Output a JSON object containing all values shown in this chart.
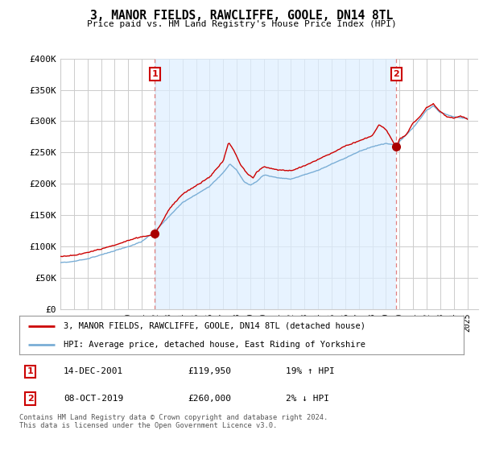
{
  "title": "3, MANOR FIELDS, RAWCLIFFE, GOOLE, DN14 8TL",
  "subtitle": "Price paid vs. HM Land Registry's House Price Index (HPI)",
  "legend_line1": "3, MANOR FIELDS, RAWCLIFFE, GOOLE, DN14 8TL (detached house)",
  "legend_line2": "HPI: Average price, detached house, East Riding of Yorkshire",
  "marker1_date": "14-DEC-2001",
  "marker1_price": "£119,950",
  "marker1_hpi": "19% ↑ HPI",
  "marker2_date": "08-OCT-2019",
  "marker2_price": "£260,000",
  "marker2_hpi": "2% ↓ HPI",
  "footer": "Contains HM Land Registry data © Crown copyright and database right 2024.\nThis data is licensed under the Open Government Licence v3.0.",
  "red_color": "#cc0000",
  "blue_color": "#7aaed6",
  "dashed_color": "#e08080",
  "shade_color": "#ddeeff",
  "background_color": "#ffffff",
  "grid_color": "#cccccc",
  "ylim": [
    0,
    400000
  ],
  "yticks": [
    0,
    50000,
    100000,
    150000,
    200000,
    250000,
    300000,
    350000,
    400000
  ],
  "ytick_labels": [
    "£0",
    "£50K",
    "£100K",
    "£150K",
    "£200K",
    "£250K",
    "£300K",
    "£350K",
    "£400K"
  ],
  "marker1_x": 2001.96,
  "marker1_y": 119950,
  "marker2_x": 2019.77,
  "marker2_y": 260000,
  "xlim_left": 1995.0,
  "xlim_right": 2025.8
}
